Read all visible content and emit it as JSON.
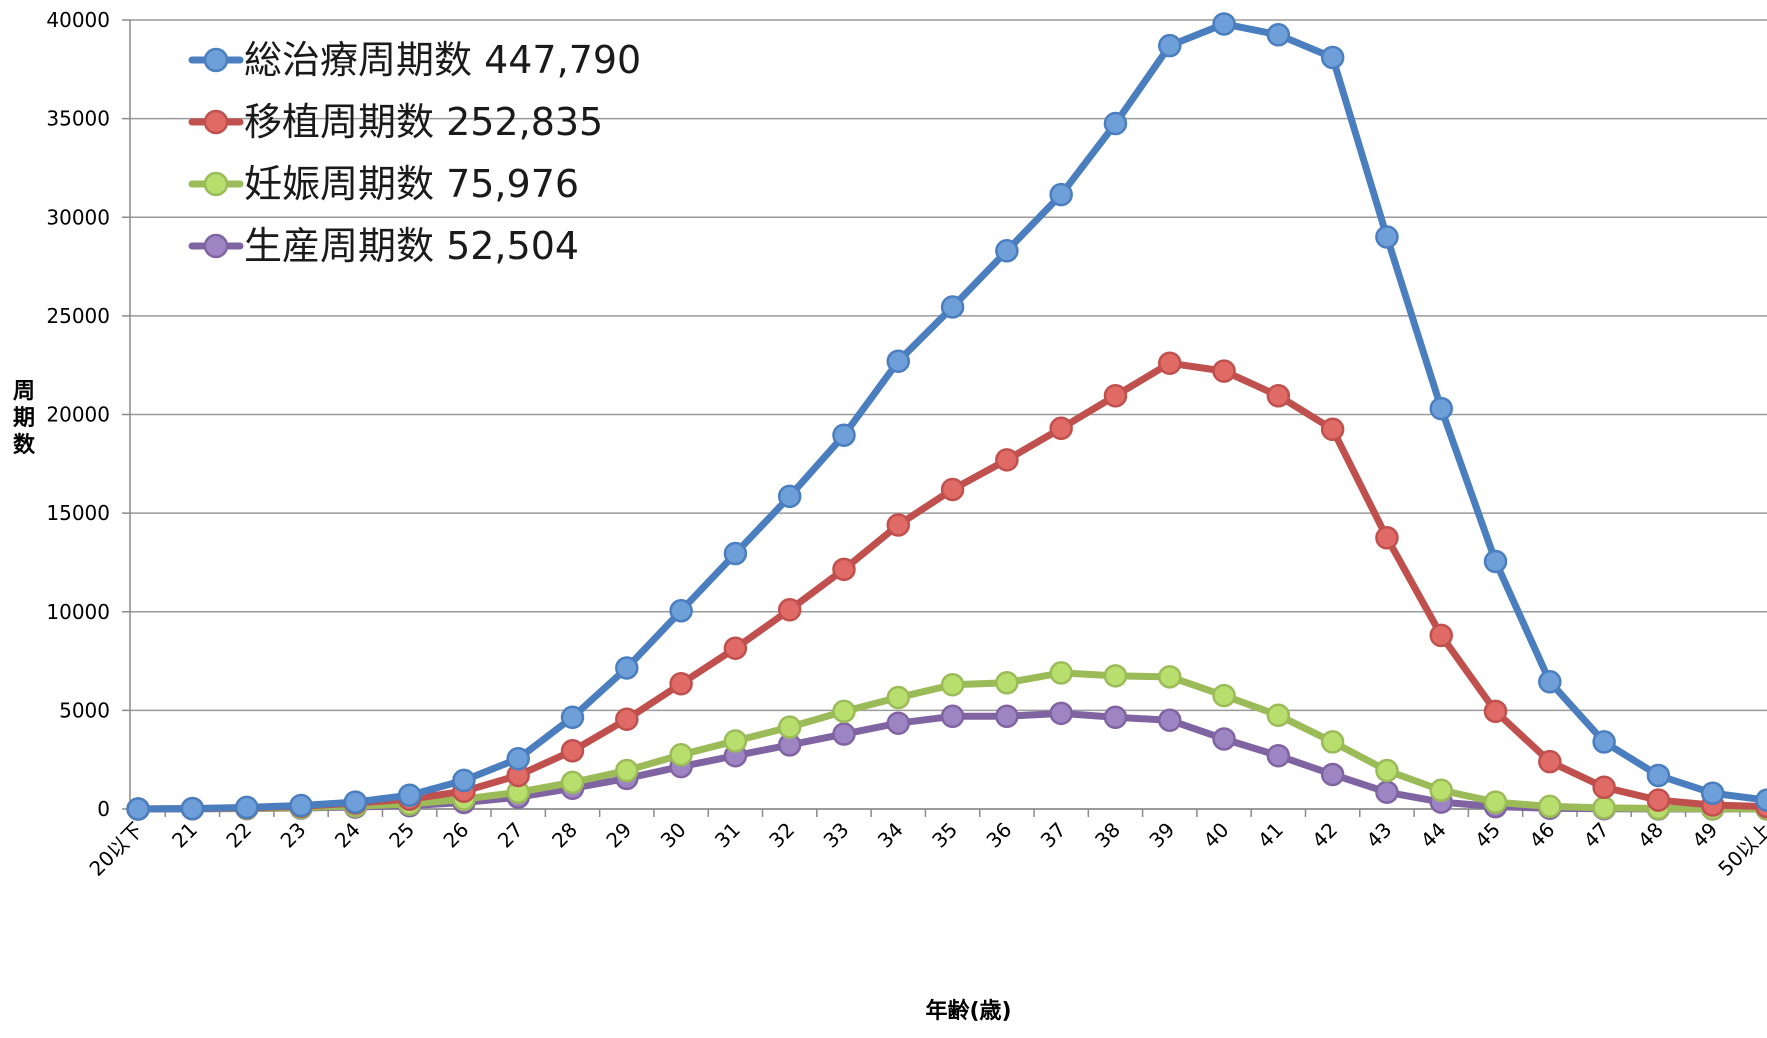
{
  "chart_data": {
    "type": "line",
    "xlabel": "年齢(歳)",
    "ylabel": "周期数",
    "ylim": [
      0,
      40000
    ],
    "yticks": [
      0,
      5000,
      10000,
      15000,
      20000,
      25000,
      30000,
      35000,
      40000
    ],
    "grid": "horizontal",
    "legend_position": "top-left",
    "categories": [
      "20以下",
      "21",
      "22",
      "23",
      "24",
      "25",
      "26",
      "27",
      "28",
      "29",
      "30",
      "31",
      "32",
      "33",
      "34",
      "35",
      "36",
      "37",
      "38",
      "39",
      "40",
      "41",
      "42",
      "43",
      "44",
      "45",
      "46",
      "47",
      "48",
      "49",
      "50以上"
    ],
    "series": [
      {
        "name": "総治療周期数 447,790",
        "color": "#4a7ebf",
        "marker": "#6f9fd8",
        "values": [
          0,
          20,
          80,
          180,
          350,
          700,
          1450,
          2550,
          4650,
          7150,
          10050,
          12950,
          15850,
          18950,
          22700,
          25450,
          28300,
          31150,
          34750,
          38700,
          39800,
          39250,
          38100,
          29000,
          20300,
          12550,
          6450,
          3400,
          1700,
          800,
          450
        ]
      },
      {
        "name": "移植周期数 252,835",
        "color": "#c0504d",
        "marker": "#e06a66",
        "values": [
          0,
          20,
          60,
          140,
          300,
          500,
          900,
          1700,
          2950,
          4550,
          6350,
          8150,
          10100,
          12150,
          14400,
          16200,
          17700,
          19300,
          20950,
          22600,
          22200,
          20950,
          19250,
          13750,
          8800,
          4950,
          2400,
          1100,
          450,
          200,
          120
        ]
      },
      {
        "name": "妊娠周期数 75,976",
        "color": "#9bbb59",
        "marker": "#b8de6e",
        "values": [
          0,
          10,
          30,
          70,
          150,
          250,
          500,
          850,
          1350,
          1950,
          2750,
          3450,
          4150,
          4950,
          5650,
          6300,
          6400,
          6900,
          6750,
          6700,
          5750,
          4750,
          3400,
          1950,
          950,
          350,
          130,
          60,
          30,
          10,
          5
        ]
      },
      {
        "name": "生産周期数 52,504",
        "color": "#8064a2",
        "marker": "#9d85c4",
        "values": [
          0,
          10,
          20,
          50,
          100,
          170,
          330,
          600,
          1050,
          1550,
          2150,
          2700,
          3250,
          3800,
          4350,
          4700,
          4700,
          4850,
          4650,
          4500,
          3550,
          2700,
          1750,
          850,
          350,
          120,
          40,
          15,
          5,
          2,
          1
        ]
      }
    ]
  }
}
